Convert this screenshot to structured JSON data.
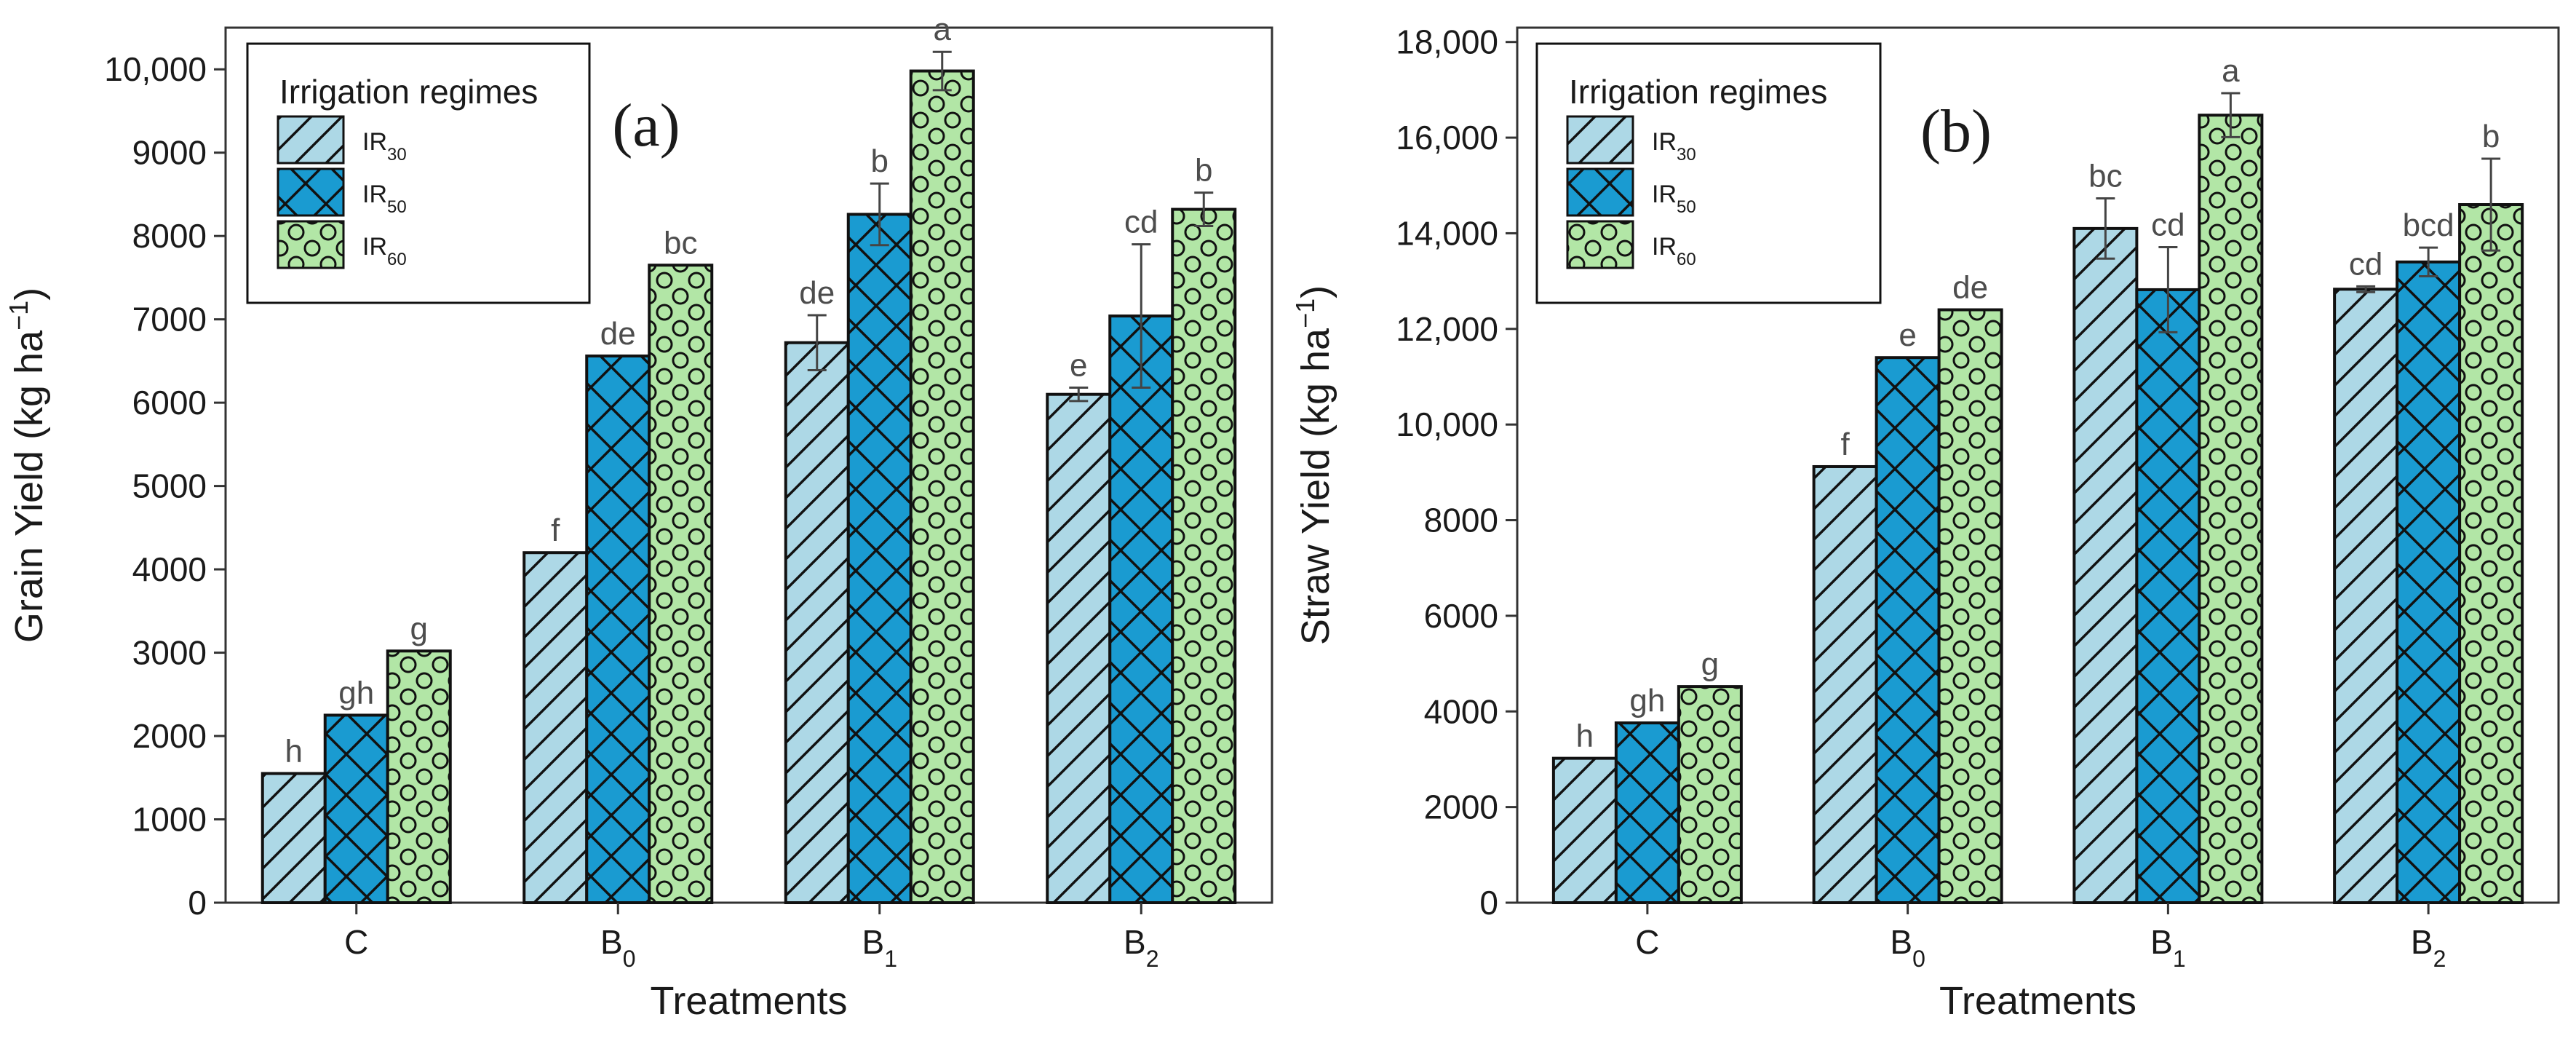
{
  "chart_data": [
    {
      "type": "bar",
      "panel_label": "(a)",
      "categories": [
        {
          "base": "C",
          "sub": ""
        },
        {
          "base": "B",
          "sub": "0"
        },
        {
          "base": "B",
          "sub": "1"
        },
        {
          "base": "B",
          "sub": "2"
        }
      ],
      "xlabel": "Treatments",
      "ylabel": {
        "main": "Grain Yield (kg ha",
        "sup": "−1",
        "end": ")"
      },
      "ylim": [
        0,
        10500
      ],
      "yticks": [
        {
          "value": 0,
          "label": "0"
        },
        {
          "value": 1000,
          "label": "1000"
        },
        {
          "value": 2000,
          "label": "2000"
        },
        {
          "value": 3000,
          "label": "3000"
        },
        {
          "value": 4000,
          "label": "4000"
        },
        {
          "value": 5000,
          "label": "5000"
        },
        {
          "value": 6000,
          "label": "6000"
        },
        {
          "value": 7000,
          "label": "7000"
        },
        {
          "value": 8000,
          "label": "8000"
        },
        {
          "value": 9000,
          "label": "9000"
        },
        {
          "value": 10000,
          "label": "10,000"
        }
      ],
      "legend": {
        "title": "Irrigation regimes",
        "position": "top-left"
      },
      "series": [
        {
          "name": "IR",
          "sub": "30",
          "pattern": "diagonal",
          "color": "#add8e6",
          "values": [
            1550,
            4200,
            6720,
            6100
          ],
          "errors": [
            0,
            0,
            330,
            80
          ],
          "letters": [
            "h",
            "f",
            "de",
            "e"
          ]
        },
        {
          "name": "IR",
          "sub": "50",
          "pattern": "crosshatch",
          "color": "#1a9bd1",
          "values": [
            2250,
            6560,
            8260,
            7040
          ],
          "errors": [
            0,
            0,
            370,
            860
          ],
          "letters": [
            "gh",
            "de",
            "b",
            "cd"
          ]
        },
        {
          "name": "IR",
          "sub": "60",
          "pattern": "circles",
          "color": "#b2e6a6",
          "values": [
            3020,
            7650,
            9980,
            8320
          ],
          "errors": [
            0,
            0,
            230,
            200
          ],
          "letters": [
            "g",
            "bc",
            "a",
            "b"
          ]
        }
      ]
    },
    {
      "type": "bar",
      "panel_label": "(b)",
      "categories": [
        {
          "base": "C",
          "sub": ""
        },
        {
          "base": "B",
          "sub": "0"
        },
        {
          "base": "B",
          "sub": "1"
        },
        {
          "base": "B",
          "sub": "2"
        }
      ],
      "xlabel": "Treatments",
      "ylabel": {
        "main": "Straw Yield (kg ha",
        "sup": "−1",
        "end": ")"
      },
      "ylim": [
        0,
        18300
      ],
      "yticks": [
        {
          "value": 0,
          "label": "0"
        },
        {
          "value": 2000,
          "label": "2000"
        },
        {
          "value": 4000,
          "label": "4000"
        },
        {
          "value": 6000,
          "label": "6000"
        },
        {
          "value": 8000,
          "label": "8000"
        },
        {
          "value": 10000,
          "label": "10,000"
        },
        {
          "value": 12000,
          "label": "12,000"
        },
        {
          "value": 14000,
          "label": "14,000"
        },
        {
          "value": 16000,
          "label": "16,000"
        },
        {
          "value": 18000,
          "label": "18,000"
        }
      ],
      "legend": {
        "title": "Irrigation regimes",
        "position": "top-left"
      },
      "series": [
        {
          "name": "IR",
          "sub": "30",
          "pattern": "diagonal",
          "color": "#add8e6",
          "values": [
            3020,
            9120,
            14100,
            12830
          ],
          "errors": [
            0,
            0,
            630,
            60
          ],
          "letters": [
            "h",
            "f",
            "bc",
            "cd"
          ]
        },
        {
          "name": "IR",
          "sub": "50",
          "pattern": "crosshatch",
          "color": "#1a9bd1",
          "values": [
            3760,
            11400,
            12820,
            13400
          ],
          "errors": [
            0,
            0,
            890,
            300
          ],
          "letters": [
            "gh",
            "e",
            "cd",
            "bcd"
          ]
        },
        {
          "name": "IR",
          "sub": "60",
          "pattern": "circles",
          "color": "#b2e6a6",
          "values": [
            4520,
            12400,
            16470,
            14600
          ],
          "errors": [
            0,
            0,
            460,
            960
          ],
          "letters": [
            "g",
            "de",
            "a",
            "b"
          ]
        }
      ]
    }
  ]
}
